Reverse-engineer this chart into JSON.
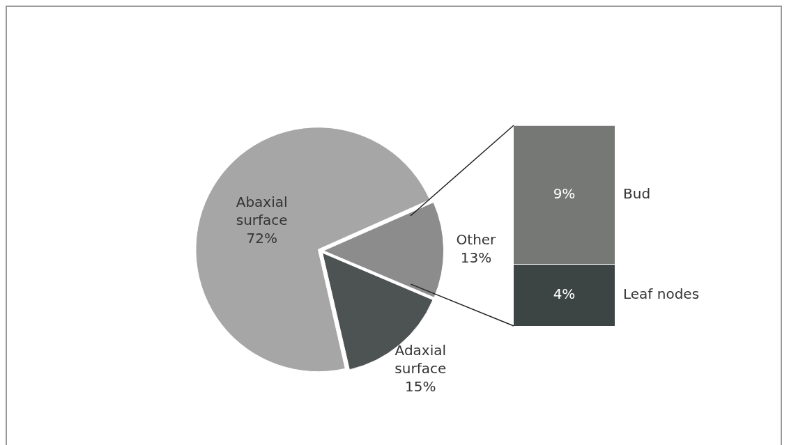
{
  "chart_data": [
    {
      "type": "pie",
      "categories": [
        "Abaxial surface",
        "Other",
        "Adaxial surface"
      ],
      "values": [
        72,
        13,
        15
      ],
      "colors": [
        "#a6a6a6",
        "#8c8c8c",
        "#4d5252"
      ],
      "value_labels": [
        "72%",
        "13%",
        "15%"
      ]
    },
    {
      "type": "bar",
      "stacked": true,
      "categories": [
        null
      ],
      "tick_labels": false,
      "series": [
        {
          "name": "Leaf nodes",
          "color": "#3d4444",
          "values": [
            4
          ],
          "value_labels": [
            "4%"
          ]
        },
        {
          "name": "Bud",
          "color": "#767876",
          "values": [
            9
          ],
          "value_labels": [
            "9%"
          ]
        }
      ]
    }
  ]
}
